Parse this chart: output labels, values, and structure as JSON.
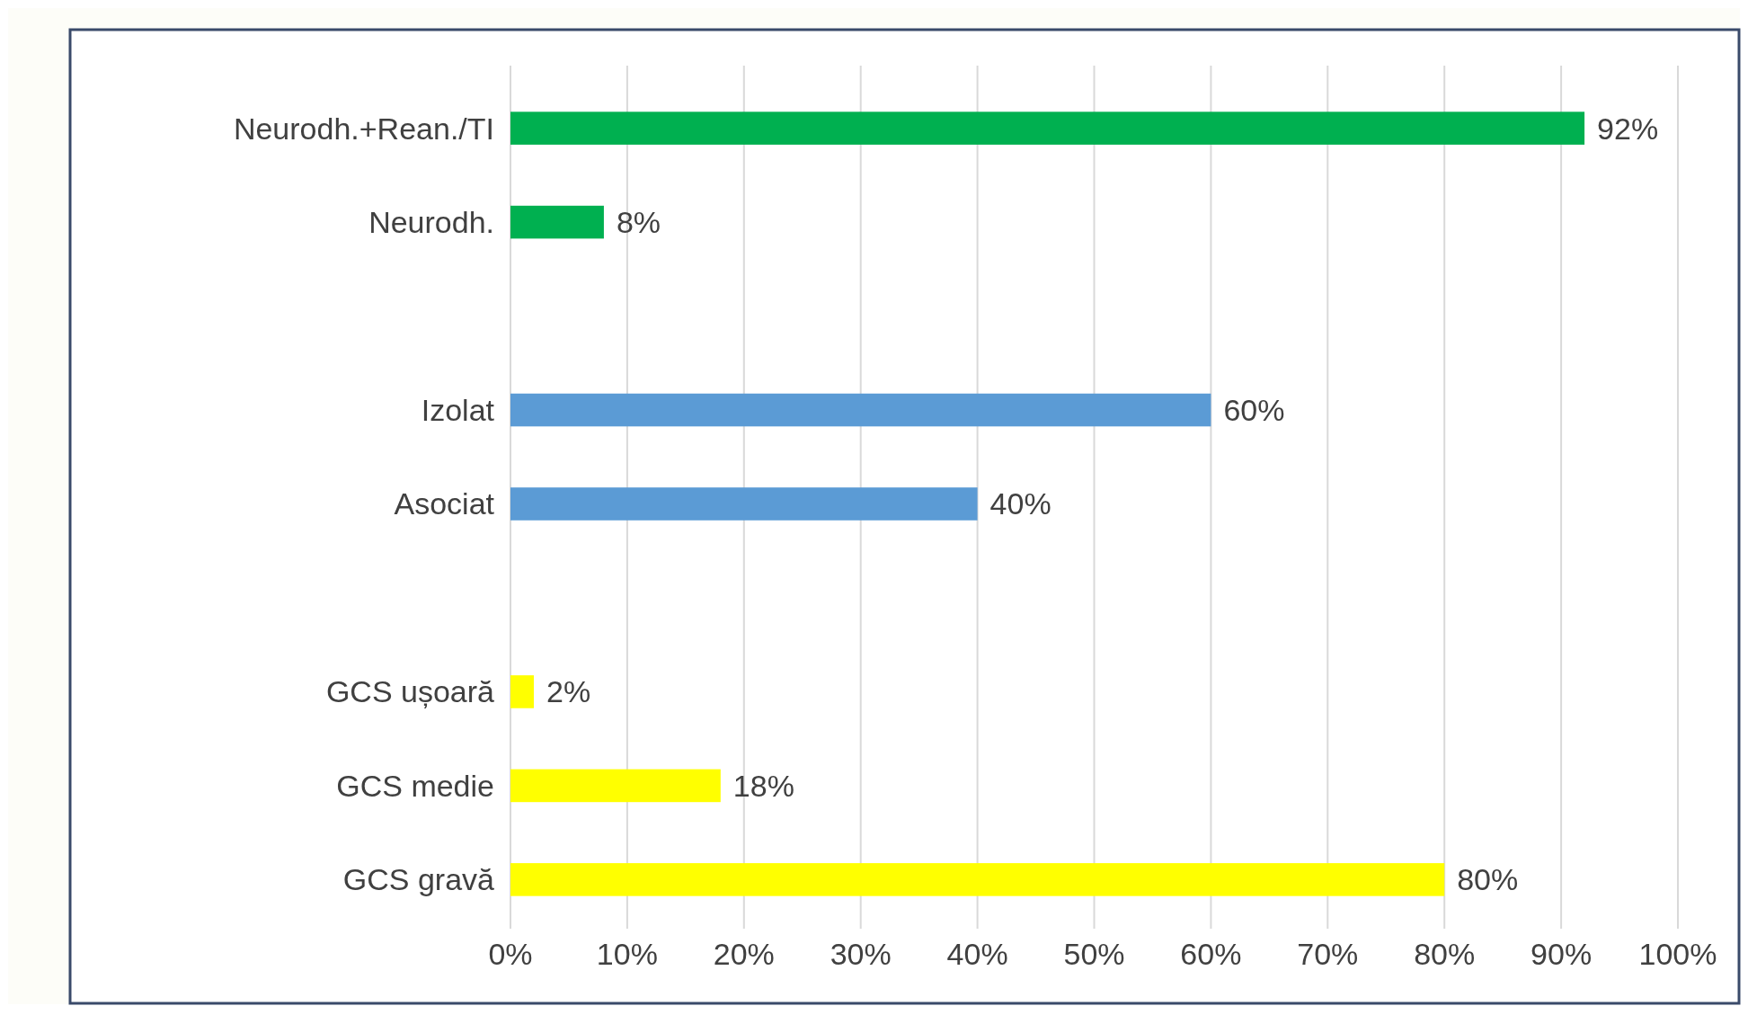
{
  "chart_data": {
    "type": "bar",
    "orientation": "horizontal",
    "categories": [
      "Neurodh.+Rean./TI",
      "Neurodh.",
      null,
      "Izolat",
      "Asociat",
      null,
      "GCS ușoară",
      "GCS medie",
      "GCS gravă"
    ],
    "values": [
      92,
      8,
      null,
      60,
      40,
      null,
      2,
      18,
      80
    ],
    "colors": [
      "#00b050",
      "#00b050",
      null,
      "#5b9bd5",
      "#5b9bd5",
      null,
      "#ffff00",
      "#ffff00",
      "#ffff00"
    ],
    "value_labels": [
      "92%",
      "8%",
      null,
      "60%",
      "40%",
      null,
      "2%",
      "18%",
      "80%"
    ],
    "xlim": [
      0,
      100
    ],
    "xticks": [
      {
        "value": 0,
        "label": "0%"
      },
      {
        "value": 10,
        "label": "10%"
      },
      {
        "value": 20,
        "label": "20%"
      },
      {
        "value": 30,
        "label": "30%"
      },
      {
        "value": 40,
        "label": "40%"
      },
      {
        "value": 50,
        "label": "50%"
      },
      {
        "value": 60,
        "label": "60%"
      },
      {
        "value": 70,
        "label": "70%"
      },
      {
        "value": 80,
        "label": "80%"
      },
      {
        "value": 90,
        "label": "90%"
      },
      {
        "value": 100,
        "label": "100%"
      }
    ],
    "grid": "x"
  }
}
